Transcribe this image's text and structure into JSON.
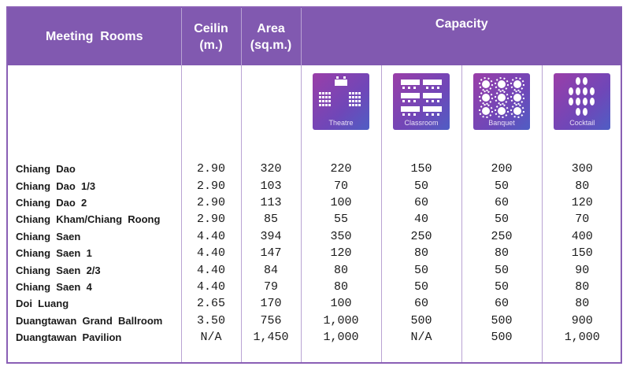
{
  "header": {
    "rooms": "Meeting  Rooms",
    "ceiling_line1": "Ceilin",
    "ceiling_line2": "(m.)",
    "area_line1": "Area",
    "area_line2": "(sq.m.)",
    "capacity": "Capacity"
  },
  "layouts": [
    {
      "label": "Theatre",
      "icon": "theatre-icon"
    },
    {
      "label": "Classroom",
      "icon": "classroom-icon"
    },
    {
      "label": "Banquet",
      "icon": "banquet-icon"
    },
    {
      "label": "Cocktail",
      "icon": "cocktail-icon"
    }
  ],
  "colors": {
    "accent": "#8159b0",
    "tile_start": "#9a3ea8",
    "tile_end": "#4f5ec4"
  },
  "rooms": [
    {
      "name": "Chiang  Dao",
      "ceiling": "2.90",
      "area": "320",
      "theatre": "220",
      "classroom": "150",
      "banquet": "200",
      "cocktail": "300"
    },
    {
      "name": "Chiang  Dao  1/3",
      "ceiling": "2.90",
      "area": "103",
      "theatre": "70",
      "classroom": "50",
      "banquet": "50",
      "cocktail": "80"
    },
    {
      "name": "Chiang  Dao  2",
      "ceiling": "2.90",
      "area": "113",
      "theatre": "100",
      "classroom": "60",
      "banquet": "60",
      "cocktail": "120"
    },
    {
      "name": "Chiang  Kham/Chiang  Roong",
      "ceiling": "2.90",
      "area": "85",
      "theatre": "55",
      "classroom": "40",
      "banquet": "50",
      "cocktail": "70"
    },
    {
      "name": "Chiang  Saen",
      "ceiling": "4.40",
      "area": "394",
      "theatre": "350",
      "classroom": "250",
      "banquet": "250",
      "cocktail": "400"
    },
    {
      "name": "Chiang  Saen  1",
      "ceiling": "4.40",
      "area": "147",
      "theatre": "120",
      "classroom": "80",
      "banquet": "80",
      "cocktail": "150"
    },
    {
      "name": "Chiang  Saen  2/3",
      "ceiling": "4.40",
      "area": "84",
      "theatre": "80",
      "classroom": "50",
      "banquet": "50",
      "cocktail": "90"
    },
    {
      "name": "Chiang  Saen  4",
      "ceiling": "4.40",
      "area": "79",
      "theatre": "80",
      "classroom": "50",
      "banquet": "50",
      "cocktail": "80"
    },
    {
      "name": "Doi  Luang",
      "ceiling": "2.65",
      "area": "170",
      "theatre": "100",
      "classroom": "60",
      "banquet": "60",
      "cocktail": "80"
    },
    {
      "name": "Duangtawan  Grand  Ballroom",
      "ceiling": "3.50",
      "area": "756",
      "theatre": "1,000",
      "classroom": "500",
      "banquet": "500",
      "cocktail": "900"
    },
    {
      "name": "Duangtawan  Pavilion",
      "ceiling": "N/A",
      "area": "1,450",
      "theatre": "1,000",
      "classroom": "N/A",
      "banquet": "500",
      "cocktail": "1,000"
    }
  ]
}
